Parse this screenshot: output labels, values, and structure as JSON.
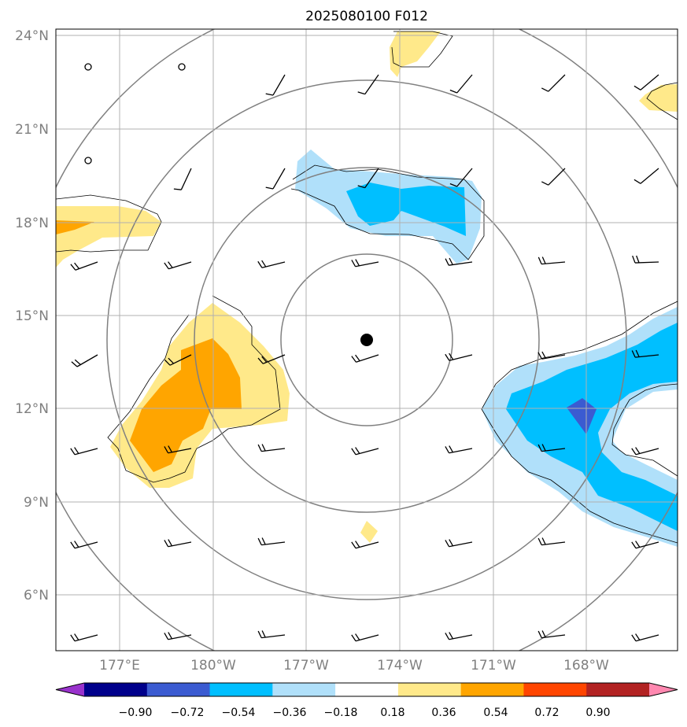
{
  "title": "2025080100 F012",
  "map": {
    "lat_labels": [
      "24°N",
      "21°N",
      "18°N",
      "15°N",
      "12°N",
      "9°N",
      "6°N"
    ],
    "lon_labels": [
      "177°E",
      "180°W",
      "177°W",
      "174°W",
      "171°W",
      "168°W"
    ],
    "center_marker": {
      "lon": -174.4,
      "lat": 14.2
    }
  },
  "colorbar": {
    "ticks": [
      "−0.90",
      "−0.72",
      "−0.54",
      "−0.36",
      "−0.18",
      "0.18",
      "0.36",
      "0.54",
      "0.72",
      "0.90"
    ],
    "colors": [
      "#9932cc",
      "#00008b",
      "#3b5bd1",
      "#00bfff",
      "#b0e0fa",
      "#ffffff",
      "#ffe98a",
      "#ffa500",
      "#ff4500",
      "#b22222",
      "#ff88b0"
    ]
  }
}
